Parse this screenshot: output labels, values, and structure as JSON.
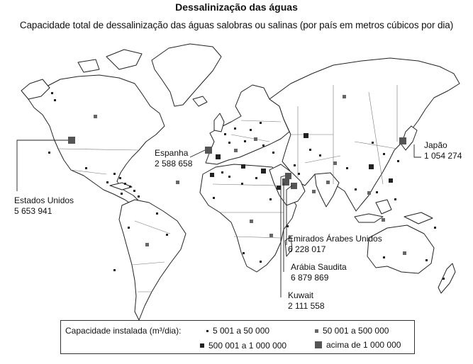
{
  "header": {
    "title": "Dessalinização das águas",
    "subtitle": "Capacidade total de dessalinização das águas salobras ou salinas (por país em metros cúbicos por dia)"
  },
  "callouts": {
    "usa": {
      "name": "Estados Unidos",
      "value": "5 653 941"
    },
    "spain": {
      "name": "Espanha",
      "value": "2 588 658"
    },
    "japan": {
      "name": "Japão",
      "value": "1 054 274"
    },
    "uae": {
      "name": "Emirados Árabes Unidos",
      "value": "6 228 017"
    },
    "saudi": {
      "name": "Arábia Saudita",
      "value": "6 879 869"
    },
    "kuwait": {
      "name": "Kuwait",
      "value": "2 111 558"
    }
  },
  "legend": {
    "title": "Capacidade instalada (m³/dia):",
    "classes": [
      {
        "label": "5 001 a 50 000",
        "color": "#222222"
      },
      {
        "label": "50 001 a 500 000",
        "color": "#666666"
      },
      {
        "label": "500 001 a 1 000 000",
        "color": "#222222"
      },
      {
        "label": "acima de 1 000 000",
        "color": "#555555"
      }
    ]
  },
  "colors": {
    "land_fill": "#ffffff",
    "coast": "#222222",
    "border": "#555555"
  }
}
